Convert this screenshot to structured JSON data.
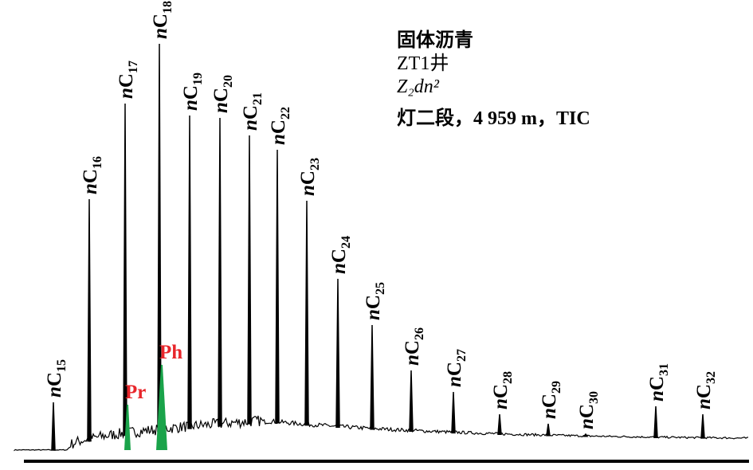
{
  "chart_data": {
    "type": "chromatogram",
    "title_lines": [
      "固体沥青",
      "ZT1井",
      "Z₂dn²",
      "灯二段，4 959 m，TIC"
    ],
    "categories": [
      "nC15",
      "nC16",
      "nC17",
      "nC18",
      "nC19",
      "nC20",
      "nC21",
      "nC22",
      "nC23",
      "nC24",
      "nC25",
      "nC26",
      "nC27",
      "nC28",
      "nC29",
      "nC30",
      "nC31",
      "nC32"
    ],
    "values": [
      60,
      315,
      435,
      510,
      420,
      417,
      395,
      377,
      313,
      215,
      157,
      100,
      73,
      45,
      33,
      20,
      55,
      45
    ],
    "color": "#000000",
    "biomarkers": {
      "names": [
        "Pr",
        "Ph"
      ],
      "values": [
        57,
        107
      ],
      "color": "#1aa34a",
      "label_color": "#e8262b"
    }
  }
}
